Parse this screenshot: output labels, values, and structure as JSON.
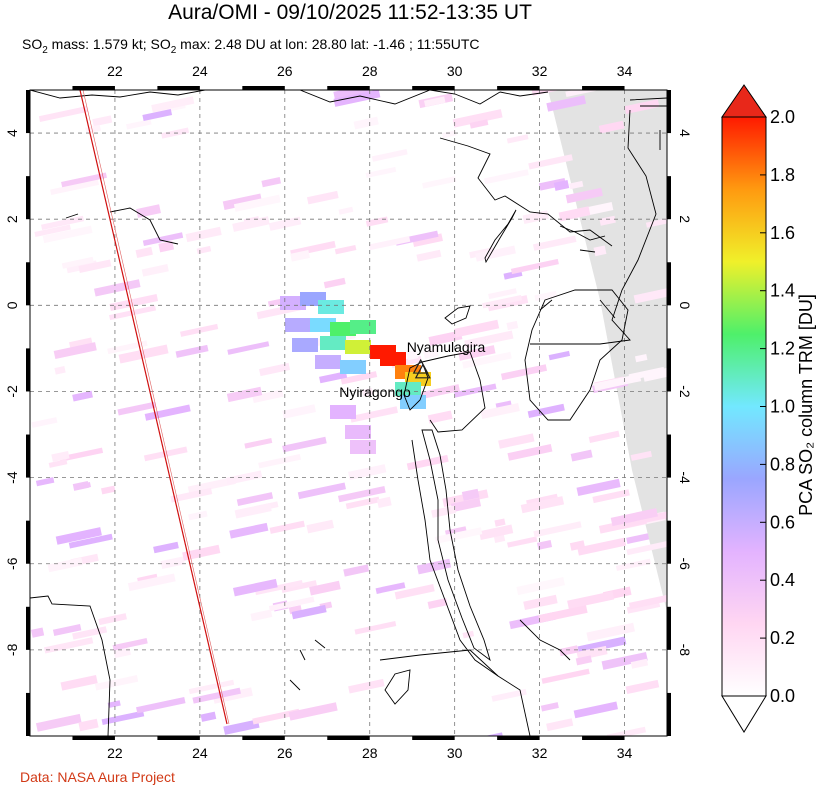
{
  "header": {
    "title": "Aura/OMI - 09/10/2025 11:52-13:35 UT",
    "subtitle_prefix": "SO",
    "subtitle_mass": " mass: 1.579 kt; SO",
    "subtitle_rest": " max: 2.48 DU at lon: 28.80 lat: -1.46 ; 11:55UTC",
    "subscript": "2"
  },
  "footer": {
    "credit": "Data: NASA Aura Project"
  },
  "map": {
    "lon_range": [
      20,
      35
    ],
    "lat_range": [
      -10,
      5
    ],
    "lon_ticks": [
      22,
      24,
      26,
      28,
      30,
      32,
      34
    ],
    "lat_ticks": [
      4,
      2,
      0,
      -2,
      -4,
      -6,
      -8
    ],
    "lon_tick_labels": [
      "22",
      "24",
      "26",
      "28",
      "30",
      "32",
      "34"
    ],
    "lat_tick_labels": [
      "4",
      "2",
      "0",
      "-2",
      "-4",
      "-6",
      "-8"
    ],
    "grid": "dashed",
    "volcanoes": [
      {
        "name": "Nyamulagira",
        "lon": 29.2,
        "lat": -1.41
      },
      {
        "name": "Nyiragongo",
        "lon": 29.25,
        "lat": -1.52
      }
    ]
  },
  "colorbar": {
    "title": "PCA SO₂ column TRM [DU]",
    "min": 0.0,
    "max": 2.0,
    "labels": [
      "0.0",
      "0.2",
      "0.4",
      "0.6",
      "0.8",
      "1.0",
      "1.2",
      "1.4",
      "1.6",
      "1.8",
      "2.0"
    ],
    "colors": {
      "max_triangle": "#e8281a",
      "min_triangle": "#ffffff",
      "stops": [
        "#ffffff",
        "#ffd6f2",
        "#e3b3ff",
        "#9aa6ff",
        "#72e8ff",
        "#4ef06a",
        "#f0f02a",
        "#ff9a10",
        "#ff1a00"
      ]
    }
  },
  "colors": {
    "coast": "#000000",
    "orbit_line": "#d01010",
    "no_data": "#e3e3e3",
    "credit": "#d23a17"
  }
}
